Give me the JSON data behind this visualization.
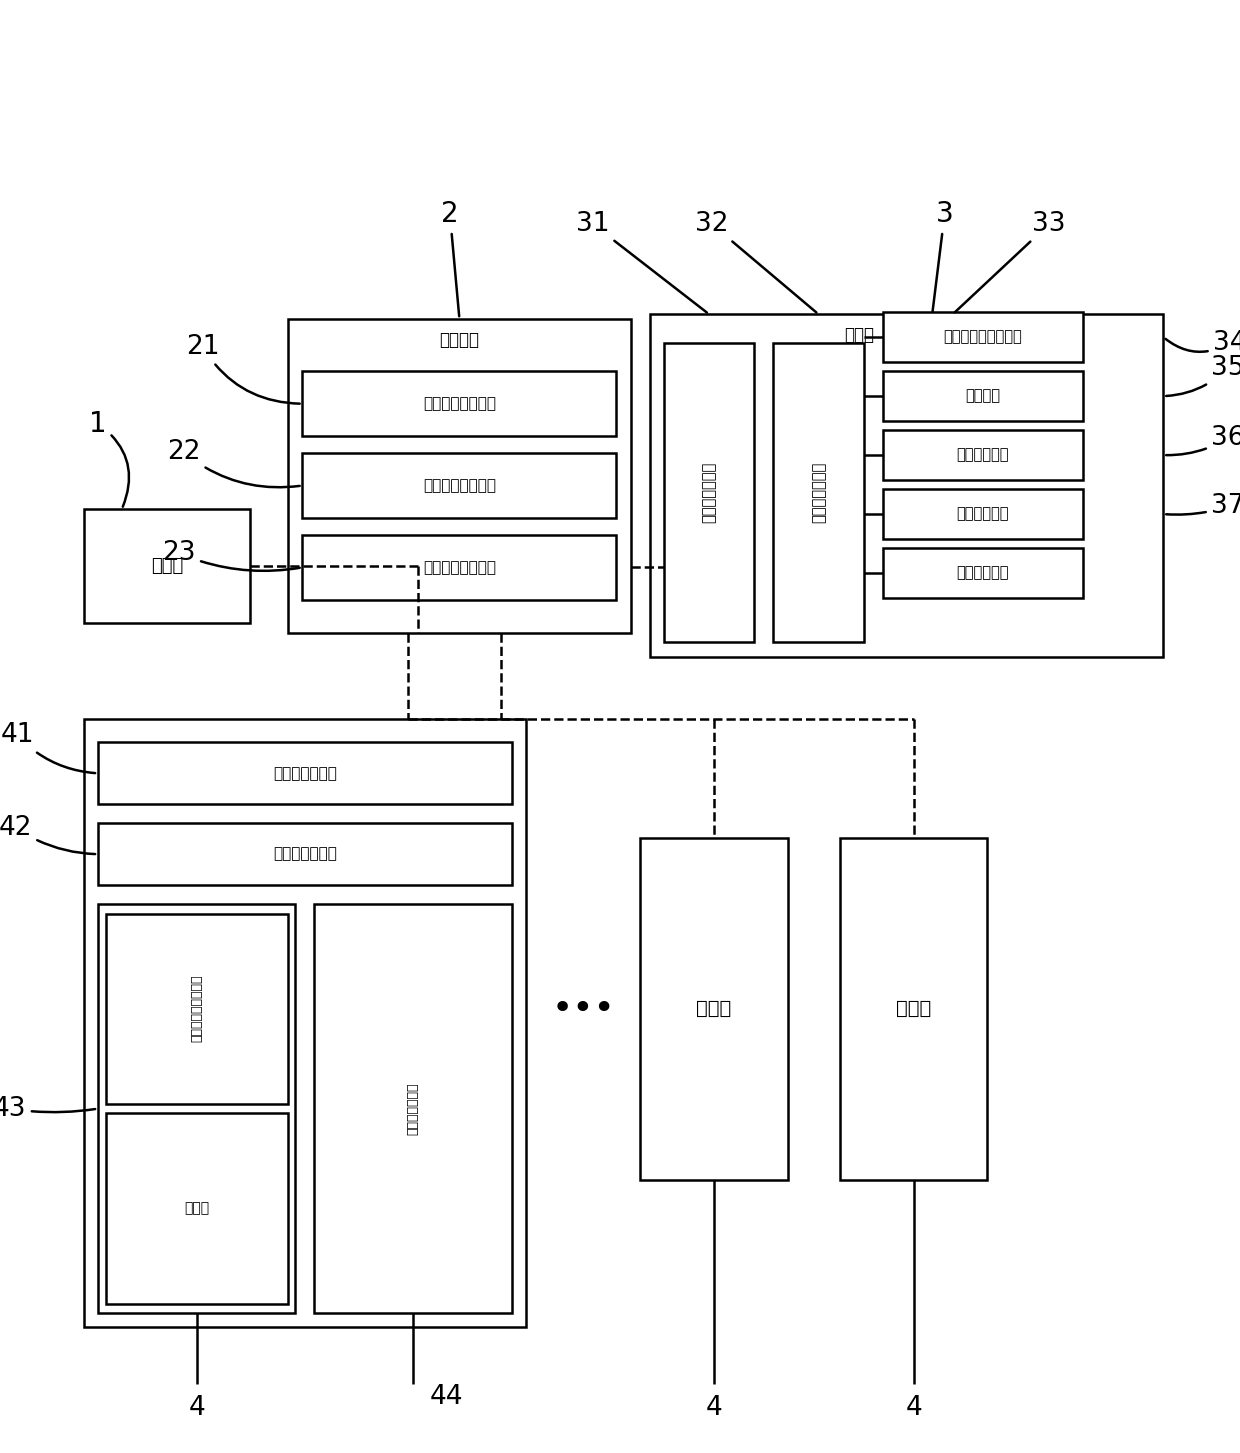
{
  "bg_color": "#ffffff",
  "line_color": "#000000",
  "text_user": "用户端",
  "text_server": "服务器端",
  "text_unit21": "还车异常处理单元",
  "text_unit22": "服务器端处理单元",
  "text_unit23": "服务器端通信单元",
  "text_vehicle": "车载端",
  "text_unit31": "车载端通信单元",
  "text_unit32": "车载端处理单元",
  "text_unit33": "车载端状态检测单元",
  "text_unit34": "计费单元",
  "text_unit35": "车辆接触单元",
  "text_unit36": "动力锁定单元",
  "text_unit37": "锁死检测单元",
  "text_charger": "充电桨",
  "text_unit41": "充电桨通信单元",
  "text_unit42": "充电桨处理单元",
  "text_unit43a": "充电桨状态检测单元",
  "text_unit43b": "充电桨",
  "text_unit43c": "充电桨接触单元",
  "text_dots": "•••"
}
